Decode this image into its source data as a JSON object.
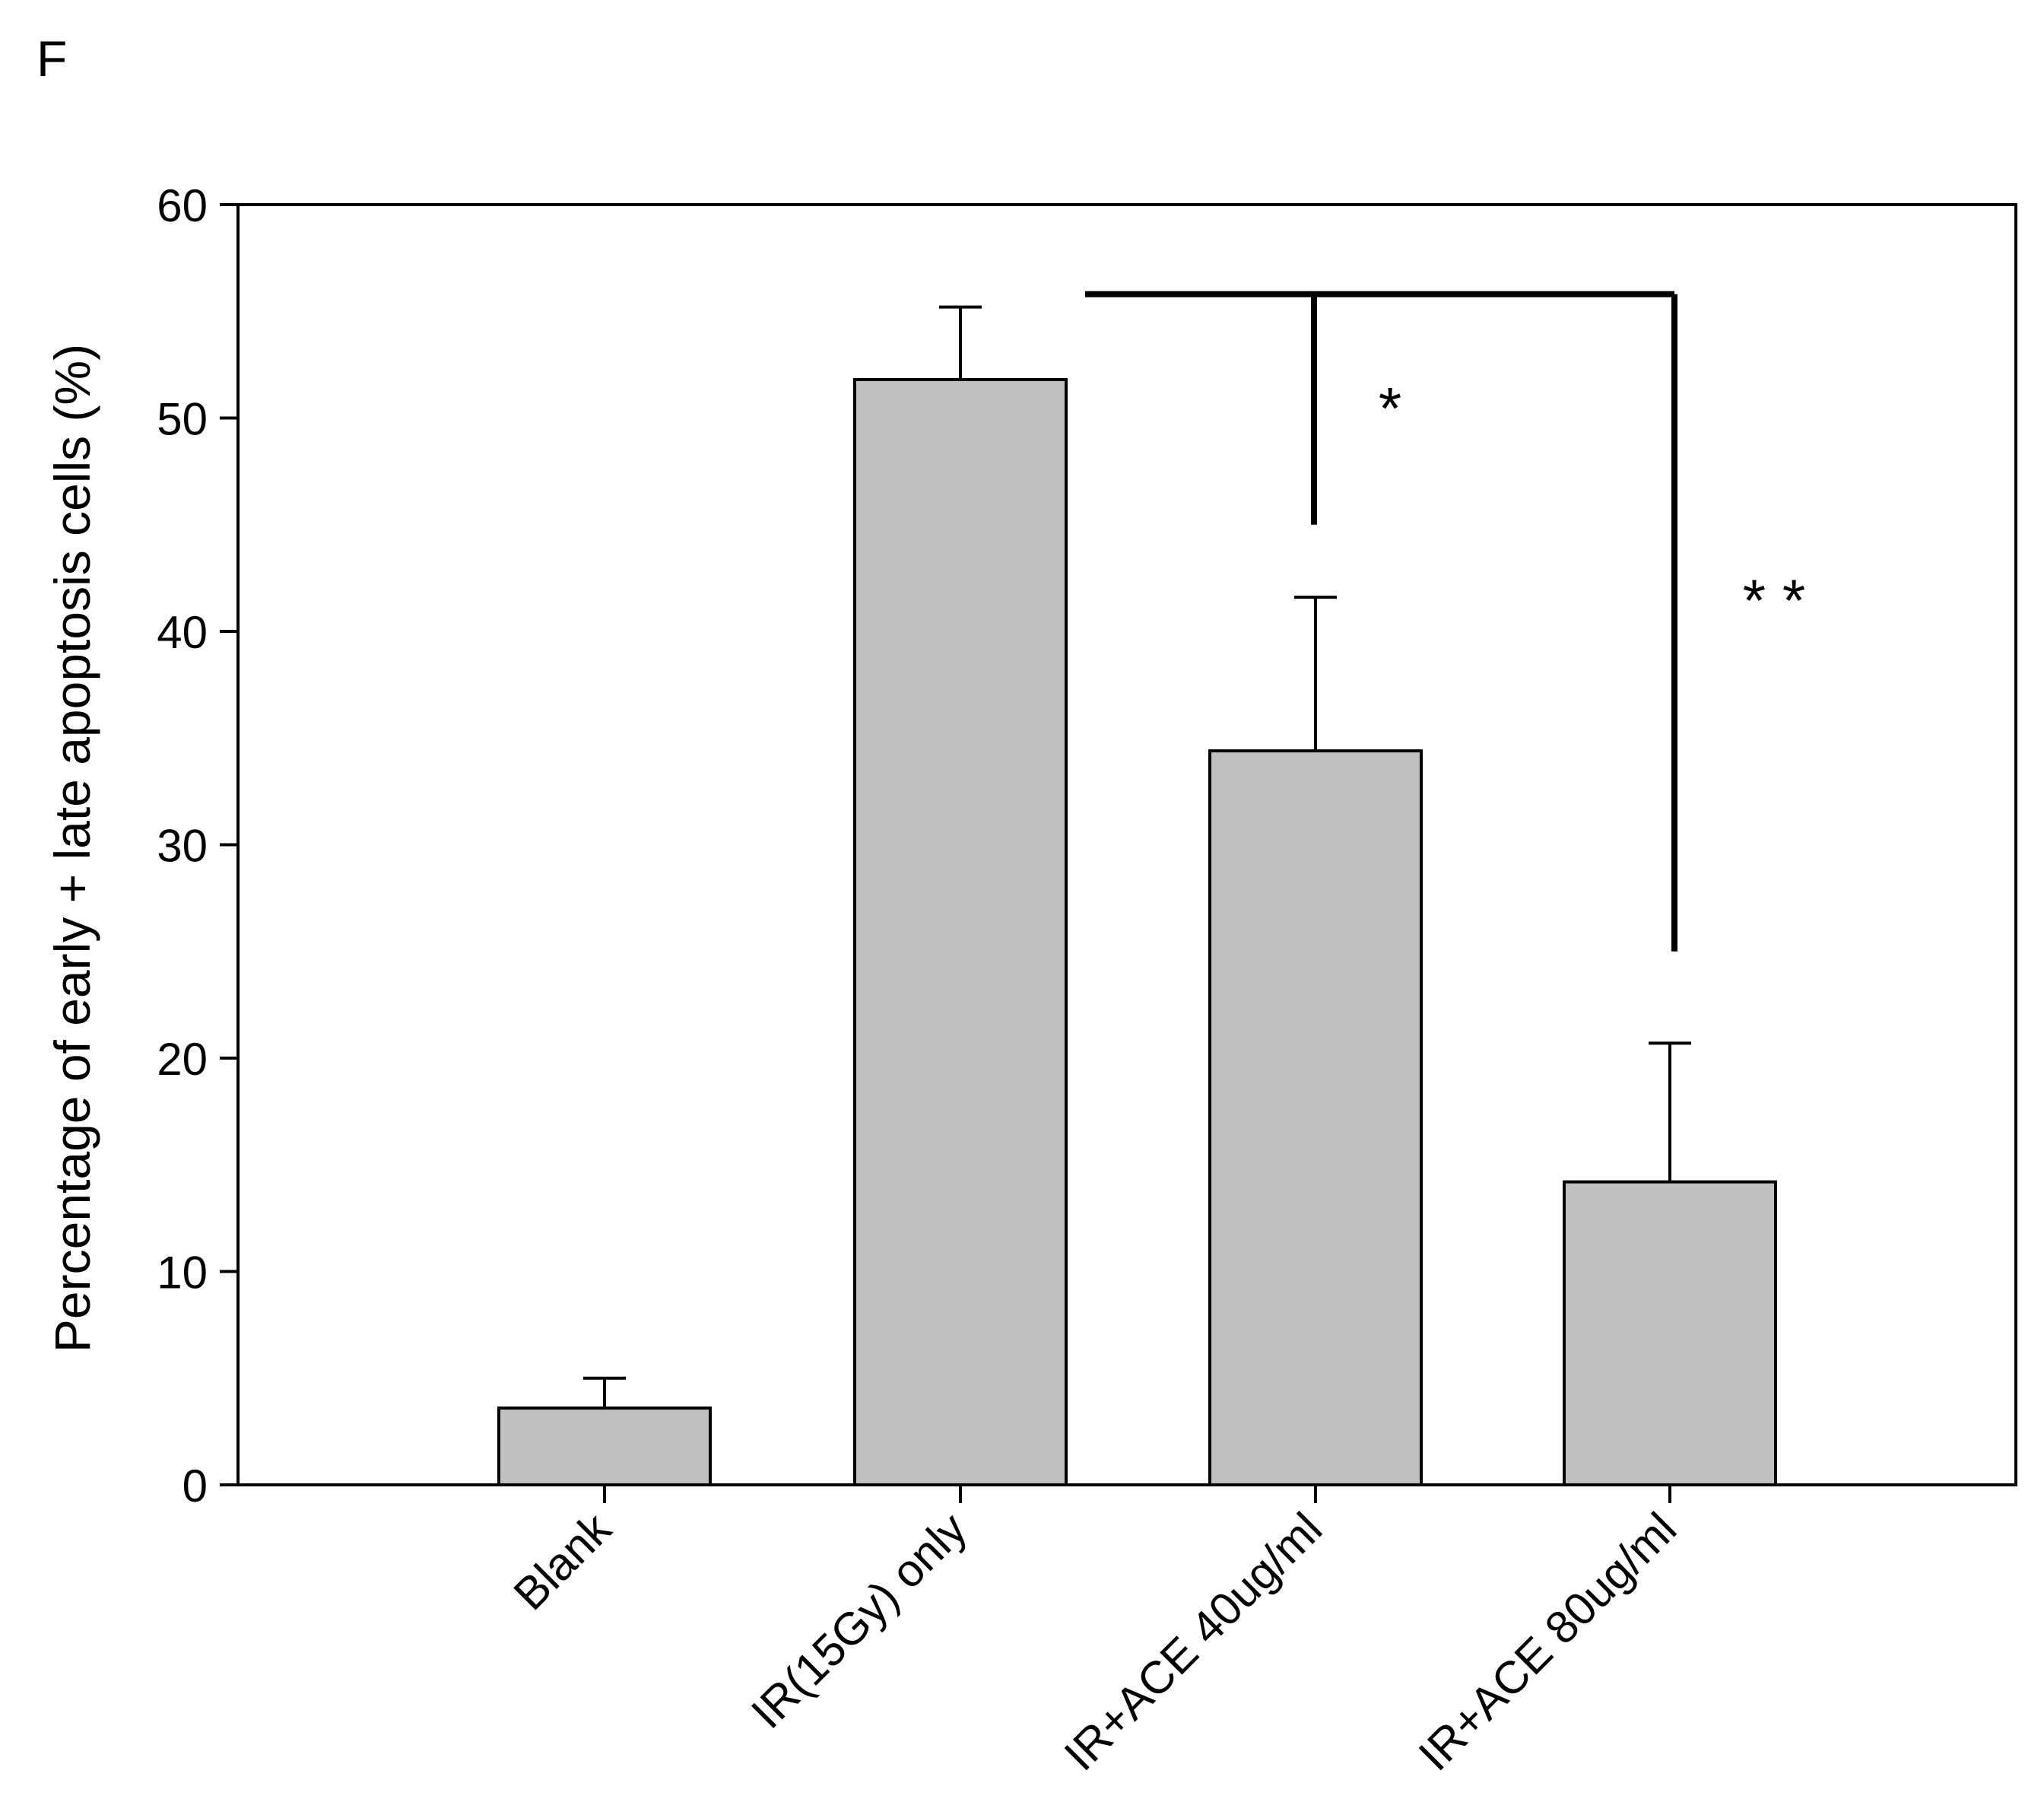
{
  "panel_label": "F",
  "chart_data": {
    "type": "bar",
    "categories": [
      "Blank",
      "IR(15Gy) only",
      "IR+ACE 40ug/ml",
      "IR+ACE 80ug/ml"
    ],
    "values": [
      3.6,
      51.8,
      34.4,
      14.2
    ],
    "errors": [
      1.4,
      3.4,
      7.2,
      6.5
    ],
    "ylabel": "Percentage of early + late apoptosis cells (%)",
    "ylim": [
      0,
      60
    ],
    "yticks": [
      0,
      10,
      20,
      30,
      40,
      50,
      60
    ],
    "bar_color": "#c0c0c0",
    "grid": false,
    "significance": [
      {
        "label": "*",
        "from_index": 1,
        "to_index": 2,
        "bracket_y": 55.8,
        "drop_to": 45
      },
      {
        "label": "* *",
        "from_index": 1,
        "to_index": 3,
        "bracket_y": 55.8,
        "drop_to": 25
      }
    ]
  }
}
